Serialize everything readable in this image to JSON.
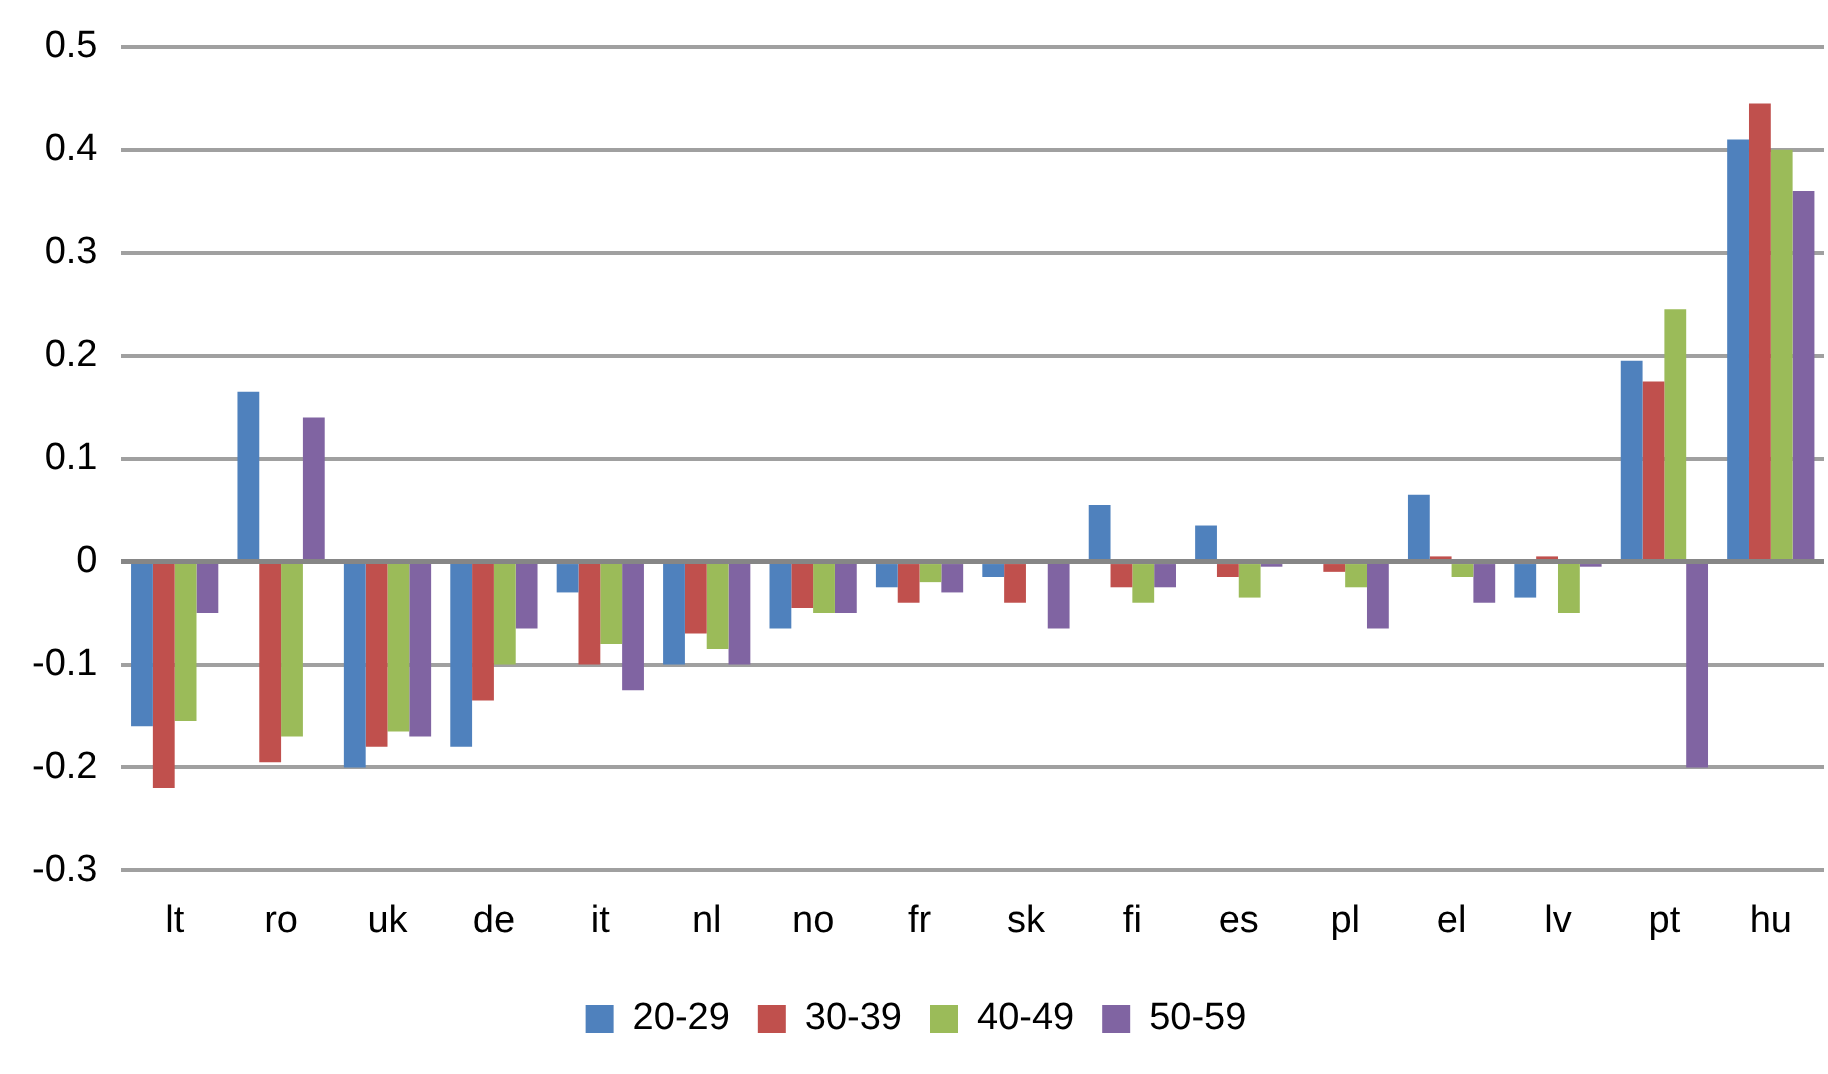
{
  "chart_data": {
    "type": "bar",
    "categories": [
      "lt",
      "ro",
      "uk",
      "de",
      "it",
      "nl",
      "no",
      "fr",
      "sk",
      "fi",
      "es",
      "pl",
      "el",
      "lv",
      "pt",
      "hu"
    ],
    "series": [
      {
        "name": "20-29",
        "color": "#4f81bd",
        "values": [
          -0.16,
          0.165,
          -0.2,
          -0.18,
          -0.03,
          -0.1,
          -0.065,
          -0.025,
          -0.015,
          0.055,
          0.035,
          0,
          0.065,
          -0.035,
          0.195,
          0.41
        ]
      },
      {
        "name": "30-39",
        "color": "#c0504d",
        "values": [
          -0.22,
          -0.195,
          -0.18,
          -0.135,
          -0.1,
          -0.07,
          -0.045,
          -0.04,
          -0.04,
          -0.025,
          -0.015,
          -0.01,
          0.005,
          0.005,
          0.175,
          0.445
        ]
      },
      {
        "name": "40-49",
        "color": "#9bbb59",
        "values": [
          -0.155,
          -0.17,
          -0.165,
          -0.1,
          -0.08,
          -0.085,
          -0.05,
          -0.02,
          0,
          -0.04,
          -0.035,
          -0.025,
          -0.015,
          -0.05,
          0.245,
          0.4
        ]
      },
      {
        "name": "50-59",
        "color": "#8064a2",
        "values": [
          -0.05,
          0.14,
          -0.17,
          -0.065,
          -0.125,
          -0.1,
          -0.05,
          -0.03,
          -0.065,
          -0.025,
          -0.005,
          -0.065,
          -0.04,
          -0.005,
          -0.2,
          0.36
        ]
      }
    ],
    "ylim": [
      -0.3,
      0.5
    ],
    "yticks": [
      -0.3,
      -0.2,
      -0.1,
      0,
      0.1,
      0.2,
      0.3,
      0.4,
      0.5
    ],
    "grid": "y",
    "legend": "bottom"
  }
}
